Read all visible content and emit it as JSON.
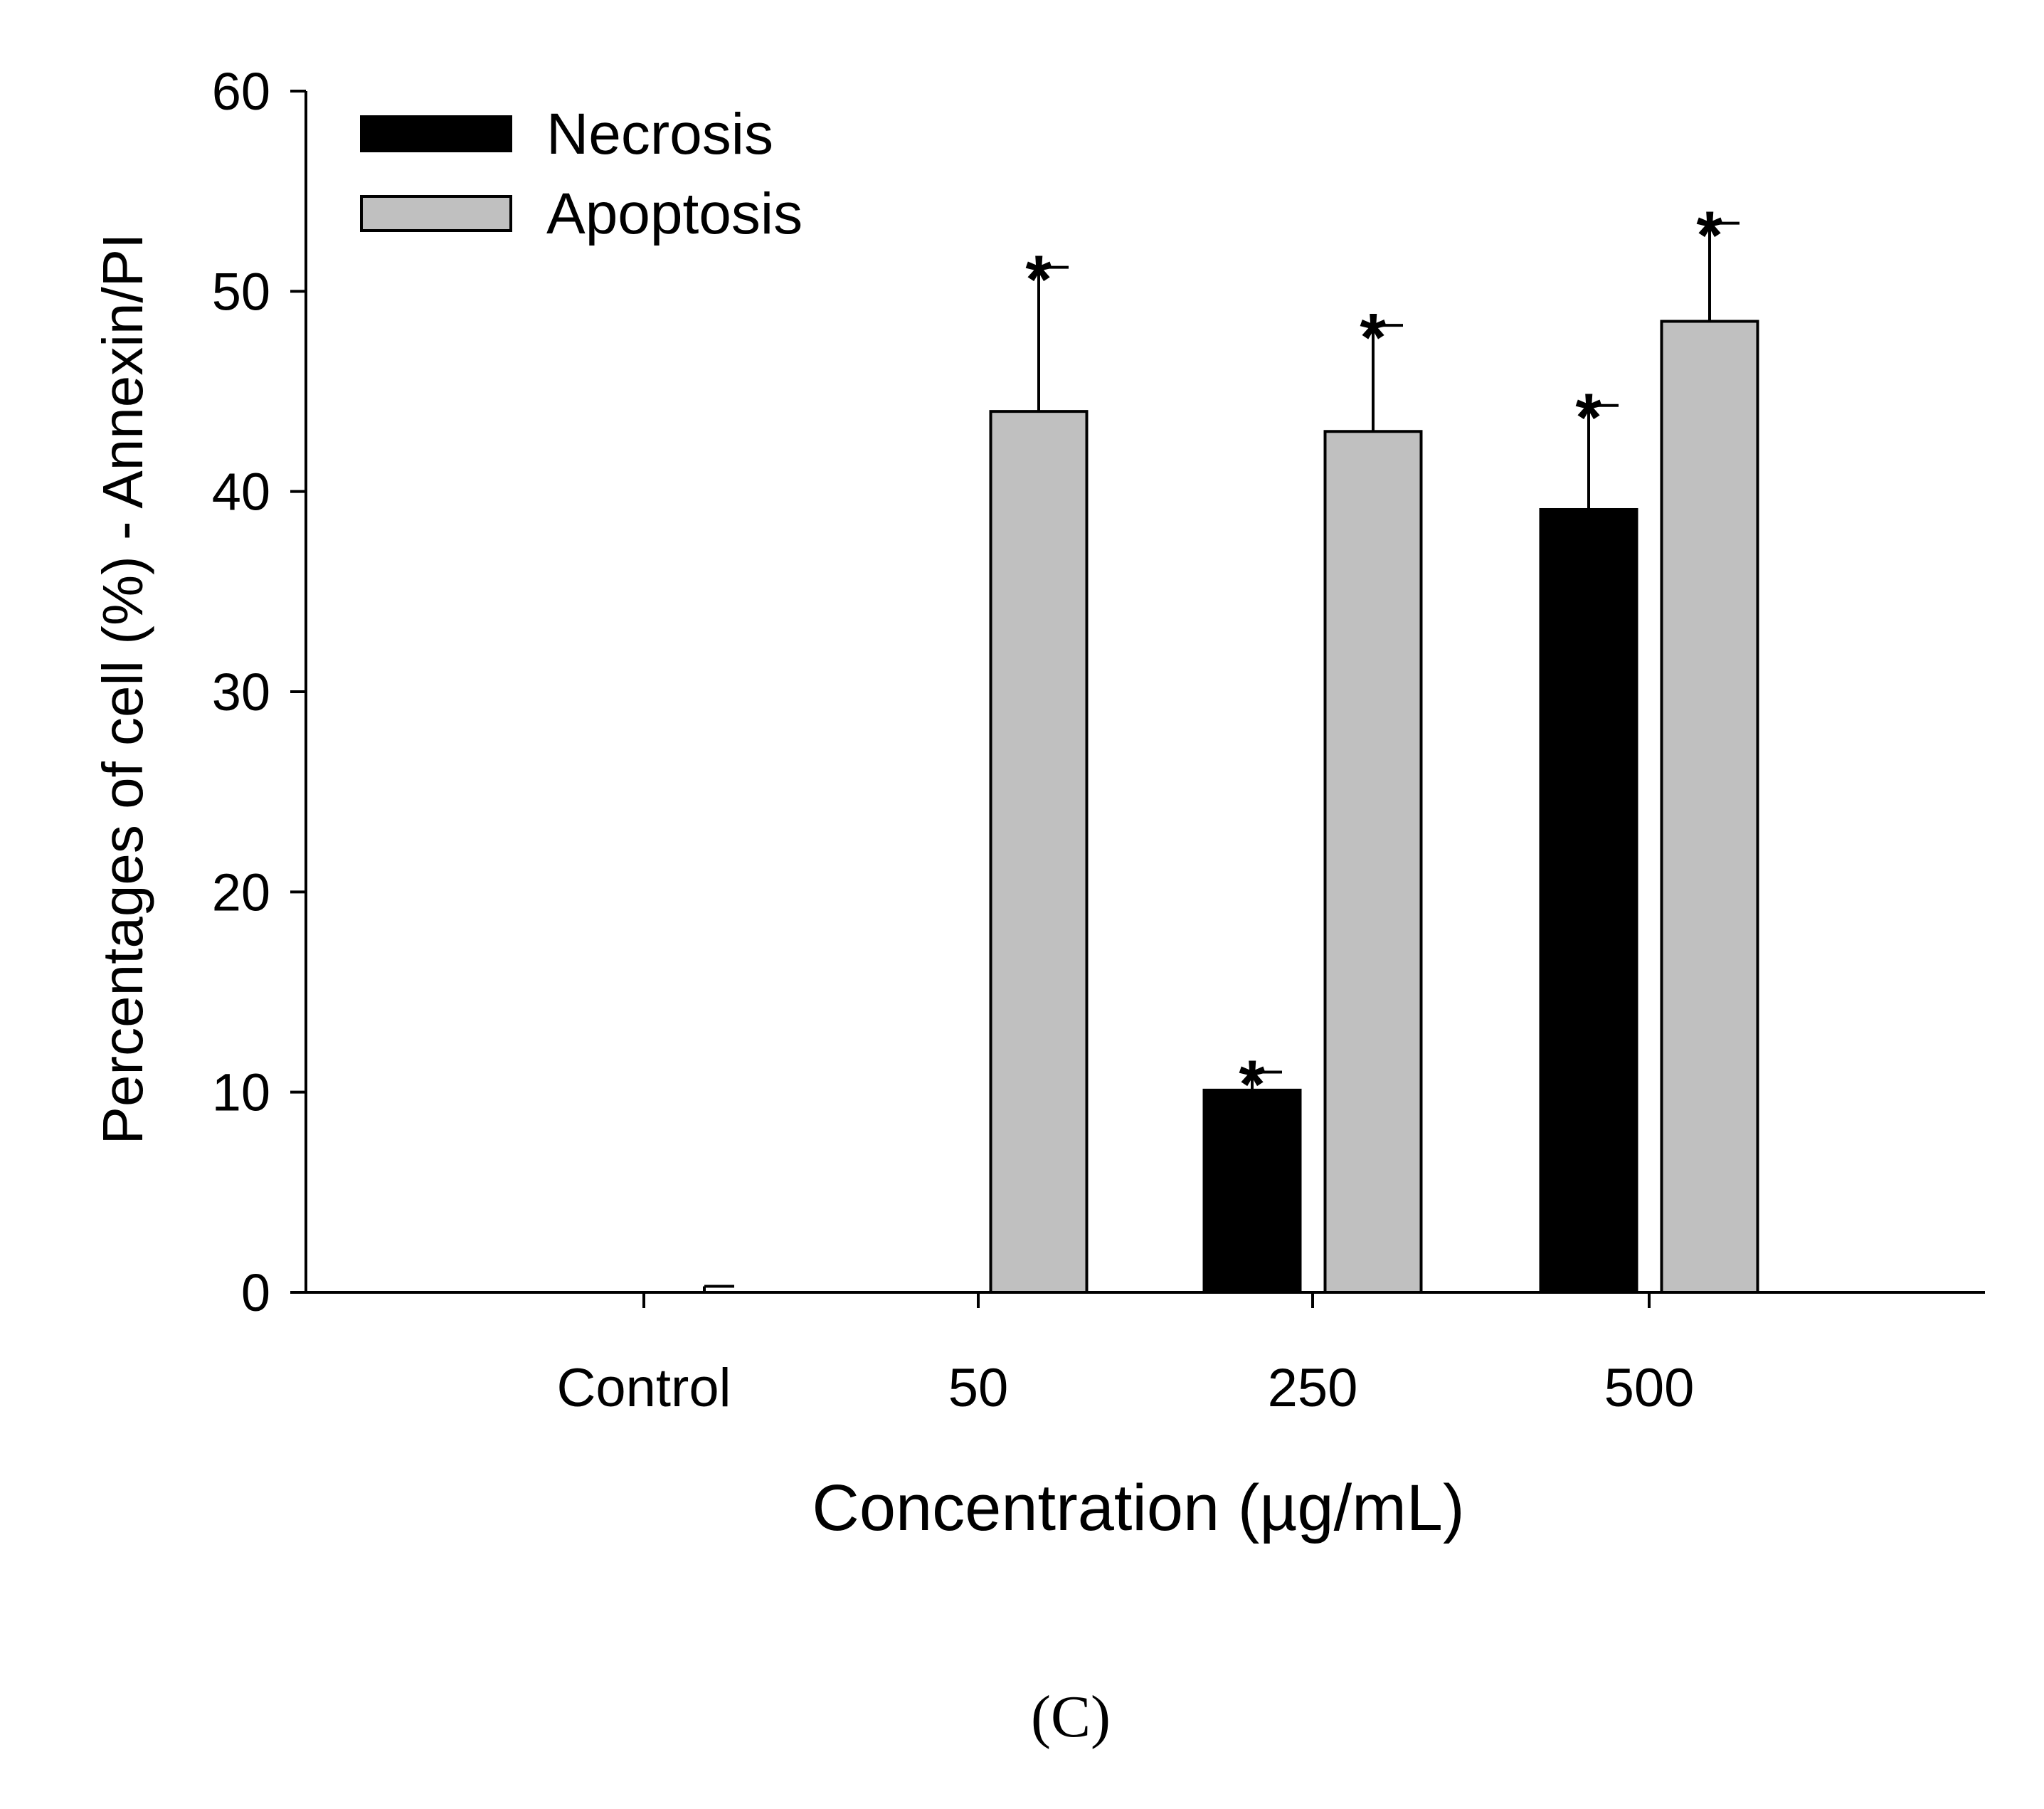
{
  "chart_data": {
    "type": "bar",
    "title": "",
    "xlabel": "Concentration (µg/mL)",
    "ylabel": "Percentages of cell (%) - Annexin/PI",
    "categories": [
      "Control",
      "50",
      "250",
      "500"
    ],
    "ylim": [
      0,
      60
    ],
    "yticks": [
      0,
      10,
      20,
      30,
      40,
      50,
      60
    ],
    "grid": false,
    "legend_position": "top-left",
    "series": [
      {
        "name": "Necrosis",
        "color": "#000000",
        "values": [
          0,
          0,
          10.1,
          39.1
        ],
        "errors": [
          0,
          0,
          0.9,
          5.2
        ],
        "significant": [
          false,
          false,
          true,
          true
        ]
      },
      {
        "name": "Apoptosis",
        "color": "#c0c0c0",
        "values": [
          0,
          44.0,
          43.0,
          48.5
        ],
        "errors": [
          0.3,
          7.2,
          5.3,
          4.9
        ],
        "significant": [
          false,
          true,
          true,
          true
        ]
      }
    ],
    "significance_marker": "*"
  },
  "panel_label": "(C)"
}
